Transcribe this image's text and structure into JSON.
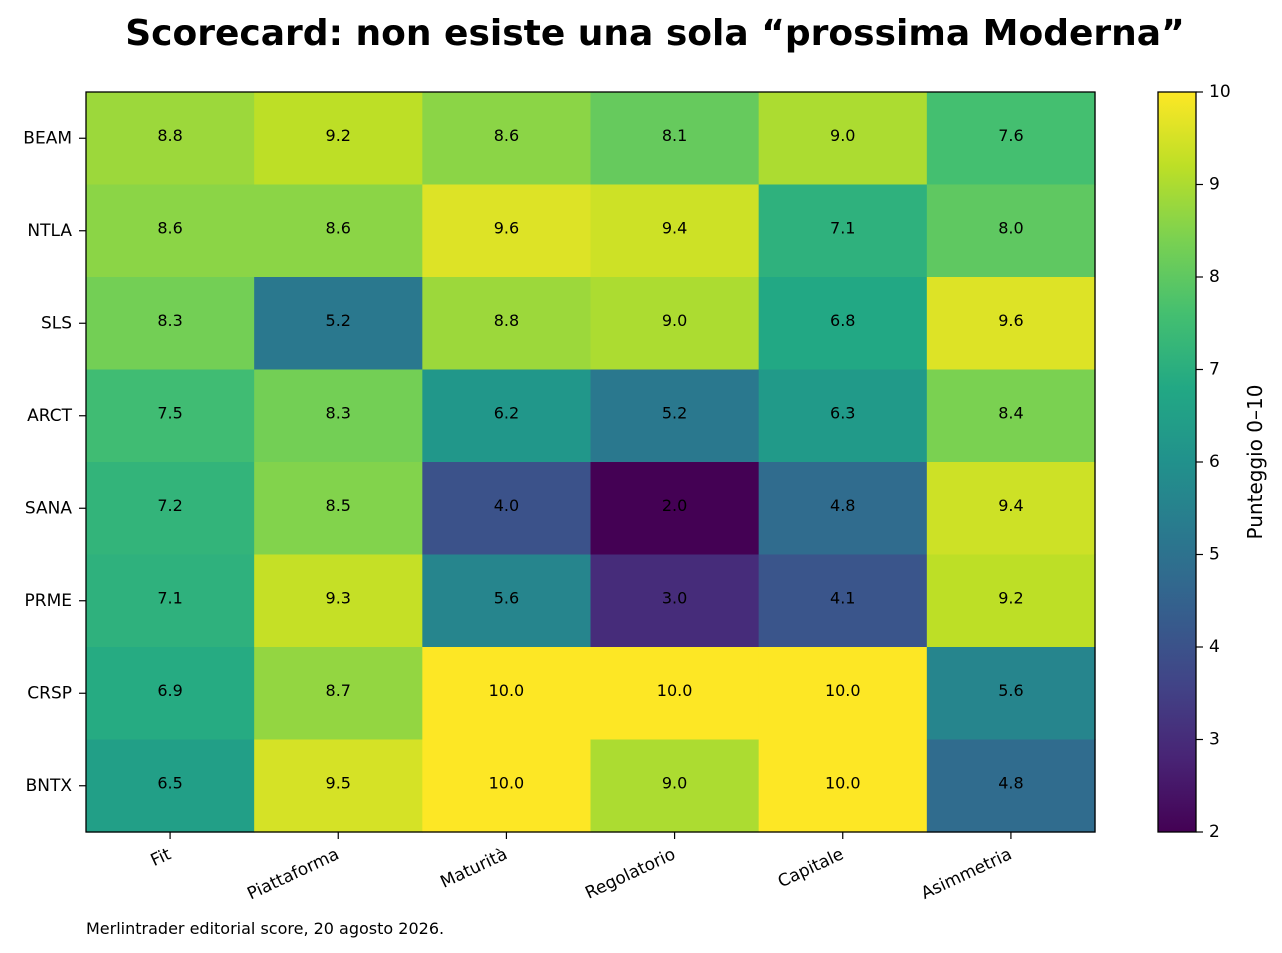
{
  "chart_data": {
    "type": "heatmap",
    "title": "Scorecard: non esiste una sola “prossima Moderna”",
    "rows": [
      "BEAM",
      "NTLA",
      "SLS",
      "ARCT",
      "SANA",
      "PRME",
      "CRSP",
      "BNTX"
    ],
    "columns": [
      "Fit",
      "Piattaforma",
      "Maturità",
      "Regolatorio",
      "Capitale",
      "Asimmetria"
    ],
    "values": [
      [
        8.8,
        9.2,
        8.6,
        8.1,
        9.0,
        7.6
      ],
      [
        8.6,
        8.6,
        9.6,
        9.4,
        7.1,
        8.0
      ],
      [
        8.3,
        5.2,
        8.8,
        9.0,
        6.8,
        9.6
      ],
      [
        7.5,
        8.3,
        6.2,
        5.2,
        6.3,
        8.4
      ],
      [
        7.2,
        8.5,
        4.0,
        2.0,
        4.8,
        9.4
      ],
      [
        7.1,
        9.3,
        5.6,
        3.0,
        4.1,
        9.2
      ],
      [
        6.9,
        8.7,
        10.0,
        10.0,
        10.0,
        5.6
      ],
      [
        6.5,
        9.5,
        10.0,
        9.0,
        10.0,
        4.8
      ]
    ],
    "value_labels": [
      [
        "8.8",
        "9.2",
        "8.6",
        "8.1",
        "9.0",
        "7.6"
      ],
      [
        "8.6",
        "8.6",
        "9.6",
        "9.4",
        "7.1",
        "8.0"
      ],
      [
        "8.3",
        "5.2",
        "8.8",
        "9.0",
        "6.8",
        "9.6"
      ],
      [
        "7.5",
        "8.3",
        "6.2",
        "5.2",
        "6.3",
        "8.4"
      ],
      [
        "7.2",
        "8.5",
        "4.0",
        "2.0",
        "4.8",
        "9.4"
      ],
      [
        "7.1",
        "9.3",
        "5.6",
        "3.0",
        "4.1",
        "9.2"
      ],
      [
        "6.9",
        "8.7",
        "10.0",
        "10.0",
        "10.0",
        "5.6"
      ],
      [
        "6.5",
        "9.5",
        "10.0",
        "9.0",
        "10.0",
        "4.8"
      ]
    ],
    "colormap": "viridis",
    "vmin": 2,
    "vmax": 10,
    "colorbar": {
      "label": "Punteggio 0–10",
      "ticks": [
        2,
        3,
        4,
        5,
        6,
        7,
        8,
        9,
        10
      ],
      "tick_labels": [
        "2",
        "3",
        "4",
        "5",
        "6",
        "7",
        "8",
        "9",
        "10"
      ]
    },
    "footnote": "Merlintrader editorial score, 20 agosto 2026.",
    "grid": false
  }
}
